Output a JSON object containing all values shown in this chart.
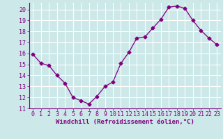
{
  "x": [
    0,
    1,
    2,
    3,
    4,
    5,
    6,
    7,
    8,
    9,
    10,
    11,
    12,
    13,
    14,
    15,
    16,
    17,
    18,
    19,
    20,
    21,
    22,
    23
  ],
  "y": [
    15.9,
    15.1,
    14.9,
    14.0,
    13.3,
    12.0,
    11.7,
    11.4,
    12.1,
    13.0,
    13.4,
    15.1,
    16.1,
    17.4,
    17.5,
    18.3,
    19.1,
    20.2,
    20.3,
    20.1,
    19.0,
    18.1,
    17.4,
    16.8
  ],
  "line_color": "#800080",
  "marker": "D",
  "marker_size": 2.5,
  "bg_color": "#cce8e8",
  "grid_color": "#ffffff",
  "xlabel": "Windchill (Refroidissement éolien,°C)",
  "xlabel_color": "#800080",
  "xlabel_fontsize": 6.5,
  "tick_fontsize": 6.0,
  "xlim": [
    -0.5,
    23.5
  ],
  "ylim": [
    11,
    20.6
  ],
  "yticks": [
    11,
    12,
    13,
    14,
    15,
    16,
    17,
    18,
    19,
    20
  ],
  "xticks": [
    0,
    1,
    2,
    3,
    4,
    5,
    6,
    7,
    8,
    9,
    10,
    11,
    12,
    13,
    14,
    15,
    16,
    17,
    18,
    19,
    20,
    21,
    22,
    23
  ]
}
